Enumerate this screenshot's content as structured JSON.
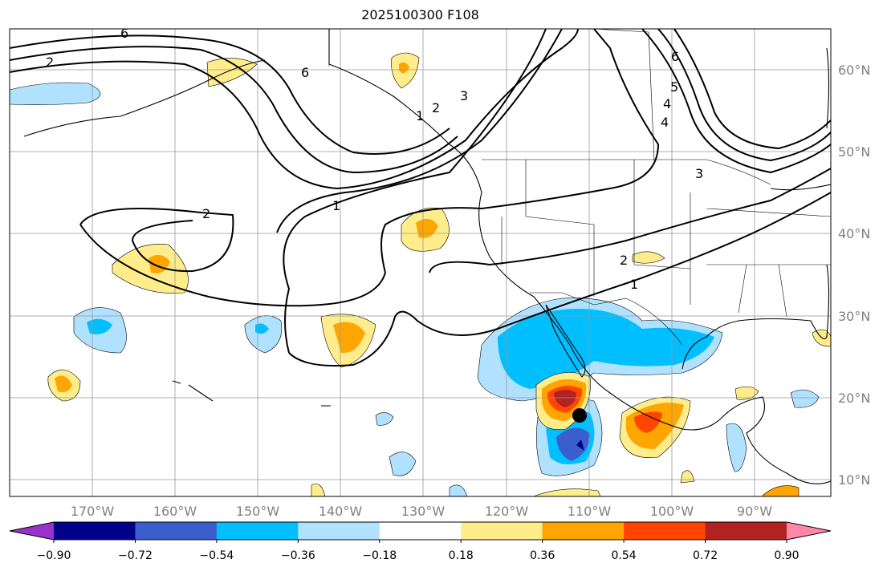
{
  "title": "2025100300 F108",
  "lon_ticks": [
    "170°W",
    "160°W",
    "150°W",
    "140°W",
    "130°W",
    "120°W",
    "110°W",
    "100°W",
    "90°W"
  ],
  "lat_ticks": [
    "60°N",
    "50°N",
    "40°N",
    "30°N",
    "20°N",
    "10°N"
  ],
  "colorbar": {
    "colors": [
      "#9932CC",
      "#00008B",
      "#3A5FCD",
      "#00BFFF",
      "#B0E2FF",
      "#FFFFFF",
      "#FFEC8B",
      "#FFA500",
      "#FF4500",
      "#B22222",
      "#FF88AA"
    ],
    "labels": [
      "−0.90",
      "−0.72",
      "−0.54",
      "−0.36",
      "−0.18",
      "0.18",
      "0.36",
      "0.54",
      "0.72",
      "0.90"
    ]
  },
  "contour_labels": [
    "6",
    "2",
    "6",
    "3",
    "2",
    "1",
    "2",
    "1",
    "2",
    "1",
    "6",
    "5",
    "4",
    "4",
    "3"
  ]
}
